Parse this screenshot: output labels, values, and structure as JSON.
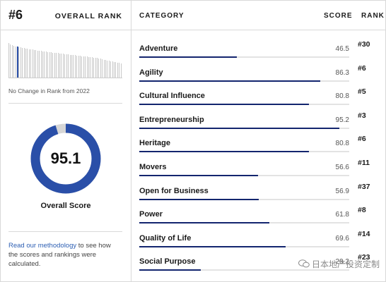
{
  "rank_panel": {
    "rank": "#6",
    "title": "OVERALL RANK",
    "change_text": "No Change in Rank from 2022",
    "history_bars": [
      0.95,
      0.9,
      0.88,
      0.86,
      0.85,
      0.84,
      0.83,
      0.82,
      0.8,
      0.8,
      0.79,
      0.78,
      0.77,
      0.77,
      0.76,
      0.75,
      0.75,
      0.74,
      0.73,
      0.73,
      0.72,
      0.71,
      0.71,
      0.7,
      0.7,
      0.69,
      0.68,
      0.68,
      0.67,
      0.67,
      0.66,
      0.65,
      0.65,
      0.64,
      0.64,
      0.63,
      0.62,
      0.62,
      0.61,
      0.61,
      0.6,
      0.59,
      0.59,
      0.58,
      0.58,
      0.57,
      0.57,
      0.56,
      0.55,
      0.55,
      0.54,
      0.53,
      0.53,
      0.52,
      0.51,
      0.5,
      0.49,
      0.48,
      0.47,
      0.46,
      0.45,
      0.44,
      0.43,
      0.42,
      0.41,
      0.4,
      0.39
    ],
    "current_index": 5,
    "score": "95.1",
    "score_fraction": 0.951,
    "score_label": "Overall Score",
    "methodology_link": "Read our methodology",
    "methodology_rest": " to see how the scores and rankings were calculated."
  },
  "table": {
    "headers": {
      "category": "CATEGORY",
      "score": "SCORE",
      "rank": "RANK"
    },
    "rows": [
      {
        "name": "Adventure",
        "score": "46.5",
        "rank": "#30"
      },
      {
        "name": "Agility",
        "score": "86.3",
        "rank": "#6"
      },
      {
        "name": "Cultural Influence",
        "score": "80.8",
        "rank": "#5"
      },
      {
        "name": "Entrepreneurship",
        "score": "95.2",
        "rank": "#3"
      },
      {
        "name": "Heritage",
        "score": "80.8",
        "rank": "#6"
      },
      {
        "name": "Movers",
        "score": "56.6",
        "rank": "#11"
      },
      {
        "name": "Open for Business",
        "score": "56.9",
        "rank": "#37"
      },
      {
        "name": "Power",
        "score": "61.8",
        "rank": "#8"
      },
      {
        "name": "Quality of Life",
        "score": "69.6",
        "rank": "#14"
      },
      {
        "name": "Social Purpose",
        "score": "29.2",
        "rank": "#23"
      }
    ]
  },
  "colors": {
    "accent": "#13256e",
    "donut": "#2a4fa8",
    "donut_track": "#d6d6d6",
    "link": "#2d5fb3"
  },
  "watermark": {
    "text": "日本地产投资定制",
    "icon": "wechat-icon"
  }
}
